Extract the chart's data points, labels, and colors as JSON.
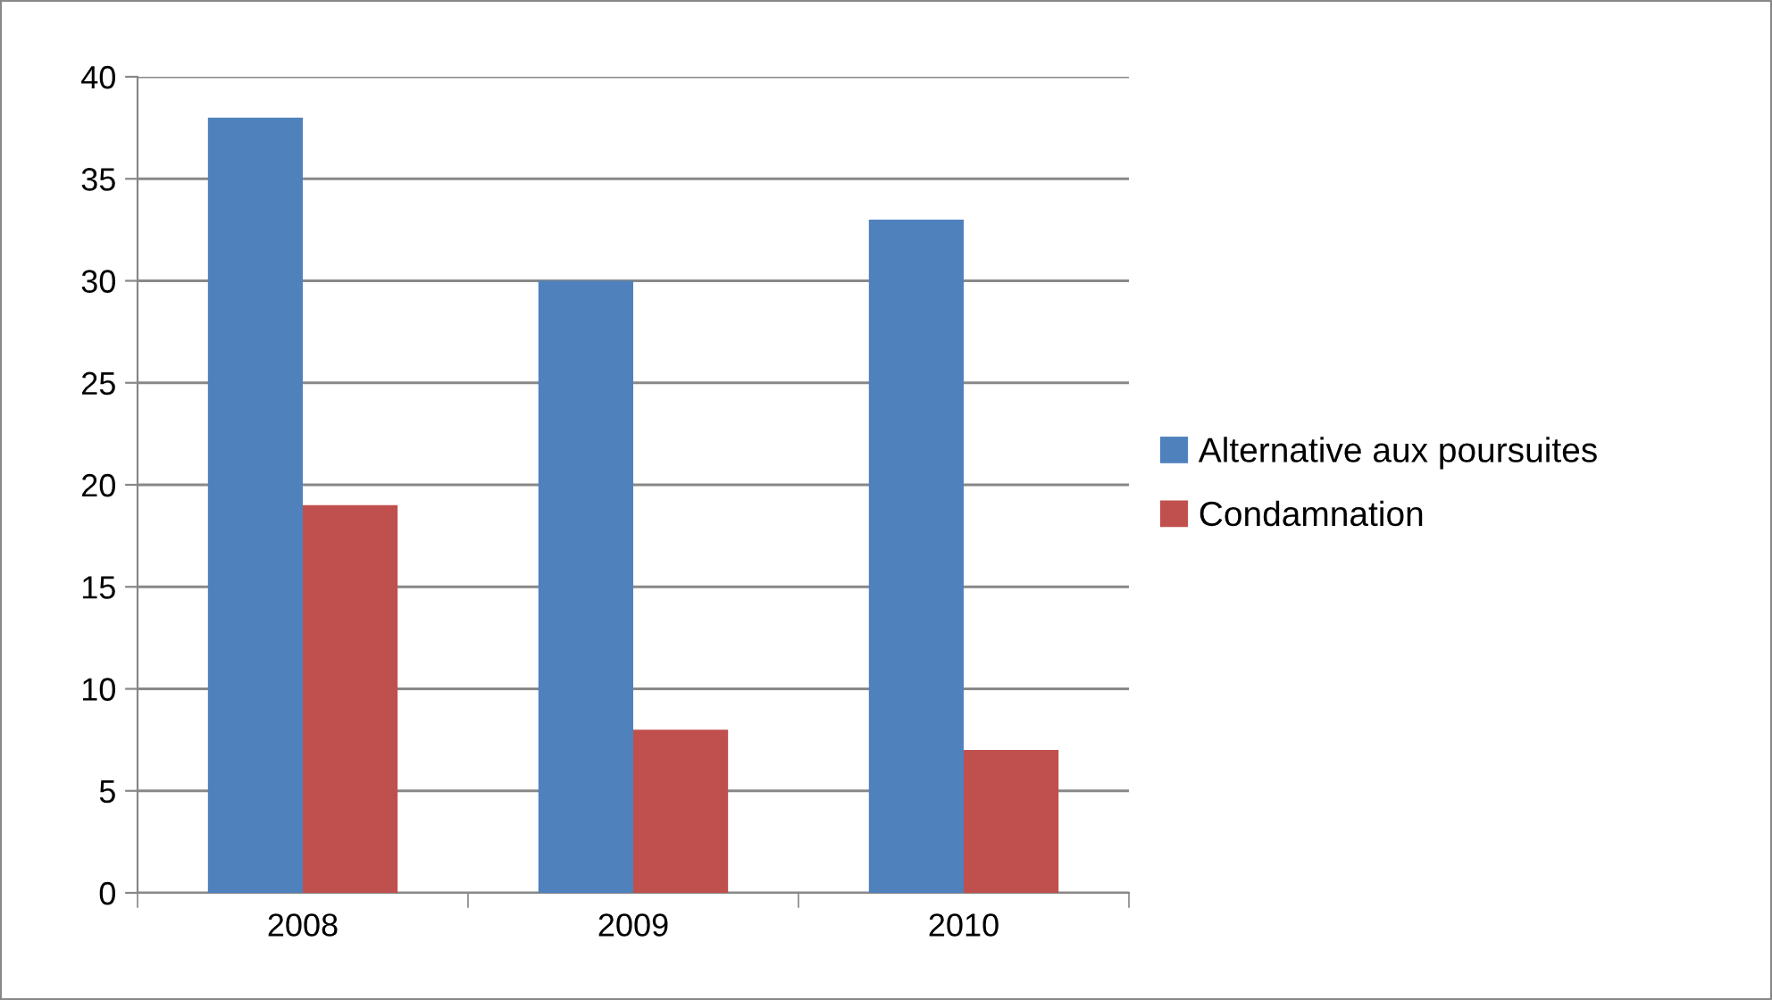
{
  "chart_data": {
    "type": "bar",
    "categories": [
      "2008",
      "2009",
      "2010"
    ],
    "series": [
      {
        "name": "Alternative aux poursuites",
        "color": "#4f81bd",
        "values": [
          38,
          30,
          33
        ]
      },
      {
        "name": "Condamnation",
        "color": "#c0504d",
        "values": [
          19,
          8,
          7
        ]
      }
    ],
    "ylim": [
      0,
      40
    ],
    "yticks": [
      0,
      5,
      10,
      15,
      20,
      25,
      30,
      35,
      40
    ],
    "grid": "y",
    "legend": "right"
  }
}
